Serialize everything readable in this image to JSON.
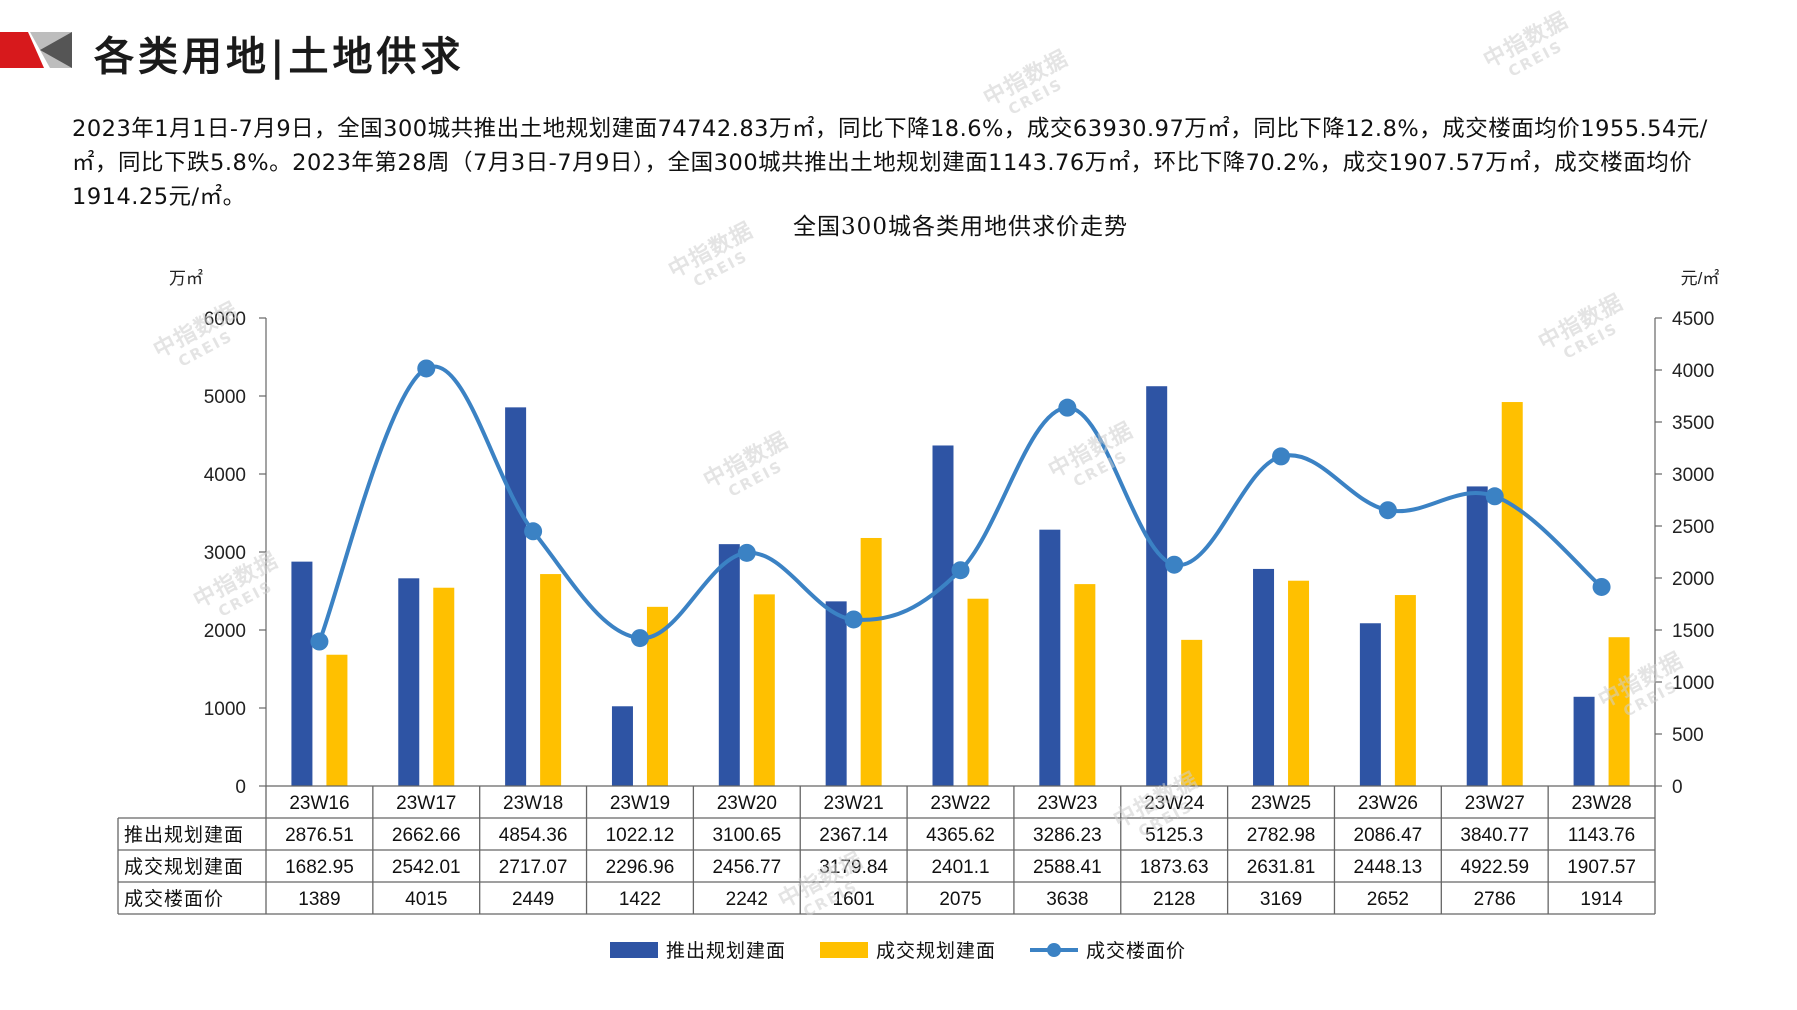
{
  "header": {
    "title": "各类用地|土地供求",
    "summary": "2023年1月1日-7月9日，全国300城共推出土地规划建面74742.83万㎡，同比下降18.6%，成交63930.97万㎡，同比下降12.8%，成交楼面均价1955.54元/㎡，同比下跌5.8%。2023年第28周（7月3日-7月9日），全国300城共推出土地规划建面1143.76万㎡，环比下降70.2%，成交1907.57万㎡，成交楼面均价1914.25元/㎡。"
  },
  "watermark": {
    "cn": "中指数据",
    "en": "CREIS"
  },
  "colors": {
    "blue": "#2e54a4",
    "yellow": "#ffc000",
    "line": "#3b82c4"
  },
  "chart_data": {
    "type": "bar",
    "title": "全国300城各类用地供求价走势",
    "y_left_label": "万㎡",
    "y_right_label": "元/㎡",
    "y_left_range": [
      0,
      6000
    ],
    "y_left_ticks": [
      "0",
      "1000",
      "2000",
      "3000",
      "4000",
      "5000",
      "6000"
    ],
    "y_right_range": [
      0,
      4500
    ],
    "y_right_ticks": [
      "0",
      "500",
      "1000",
      "1500",
      "2000",
      "2500",
      "3000",
      "3500",
      "4000",
      "4500"
    ],
    "categories": [
      "23W16",
      "23W17",
      "23W18",
      "23W19",
      "23W20",
      "23W21",
      "23W22",
      "23W23",
      "23W24",
      "23W25",
      "23W26",
      "23W27",
      "23W28"
    ],
    "series": [
      {
        "name": "推出规划建面",
        "type": "bar",
        "axis": "left",
        "values": [
          2876.51,
          2662.66,
          4854.36,
          1022.12,
          3100.65,
          2367.14,
          4365.62,
          3286.23,
          5125.3,
          2782.98,
          2086.47,
          3840.77,
          1143.76
        ],
        "labels": [
          "2876.51",
          "2662.66",
          "4854.36",
          "1022.12",
          "3100.65",
          "2367.14",
          "4365.62",
          "3286.23",
          "5125.3",
          "2782.98",
          "2086.47",
          "3840.77",
          "1143.76"
        ]
      },
      {
        "name": "成交规划建面",
        "type": "bar",
        "axis": "left",
        "values": [
          1682.95,
          2542.01,
          2717.07,
          2296.96,
          2456.77,
          3179.84,
          2401.1,
          2588.41,
          1873.63,
          2631.81,
          2448.13,
          4922.59,
          1907.57
        ],
        "labels": [
          "1682.95",
          "2542.01",
          "2717.07",
          "2296.96",
          "2456.77",
          "3179.84",
          "2401.1",
          "2588.41",
          "1873.63",
          "2631.81",
          "2448.13",
          "4922.59",
          "1907.57"
        ]
      },
      {
        "name": "成交楼面价",
        "type": "line",
        "axis": "right",
        "values": [
          1389,
          4015,
          2449,
          1422,
          2242,
          1601,
          2075,
          3638,
          2128,
          3169,
          2652,
          2786,
          1914
        ],
        "labels": [
          "1389",
          "4015",
          "2449",
          "1422",
          "2242",
          "1601",
          "2075",
          "3638",
          "2128",
          "3169",
          "2652",
          "2786",
          "1914"
        ]
      }
    ]
  }
}
